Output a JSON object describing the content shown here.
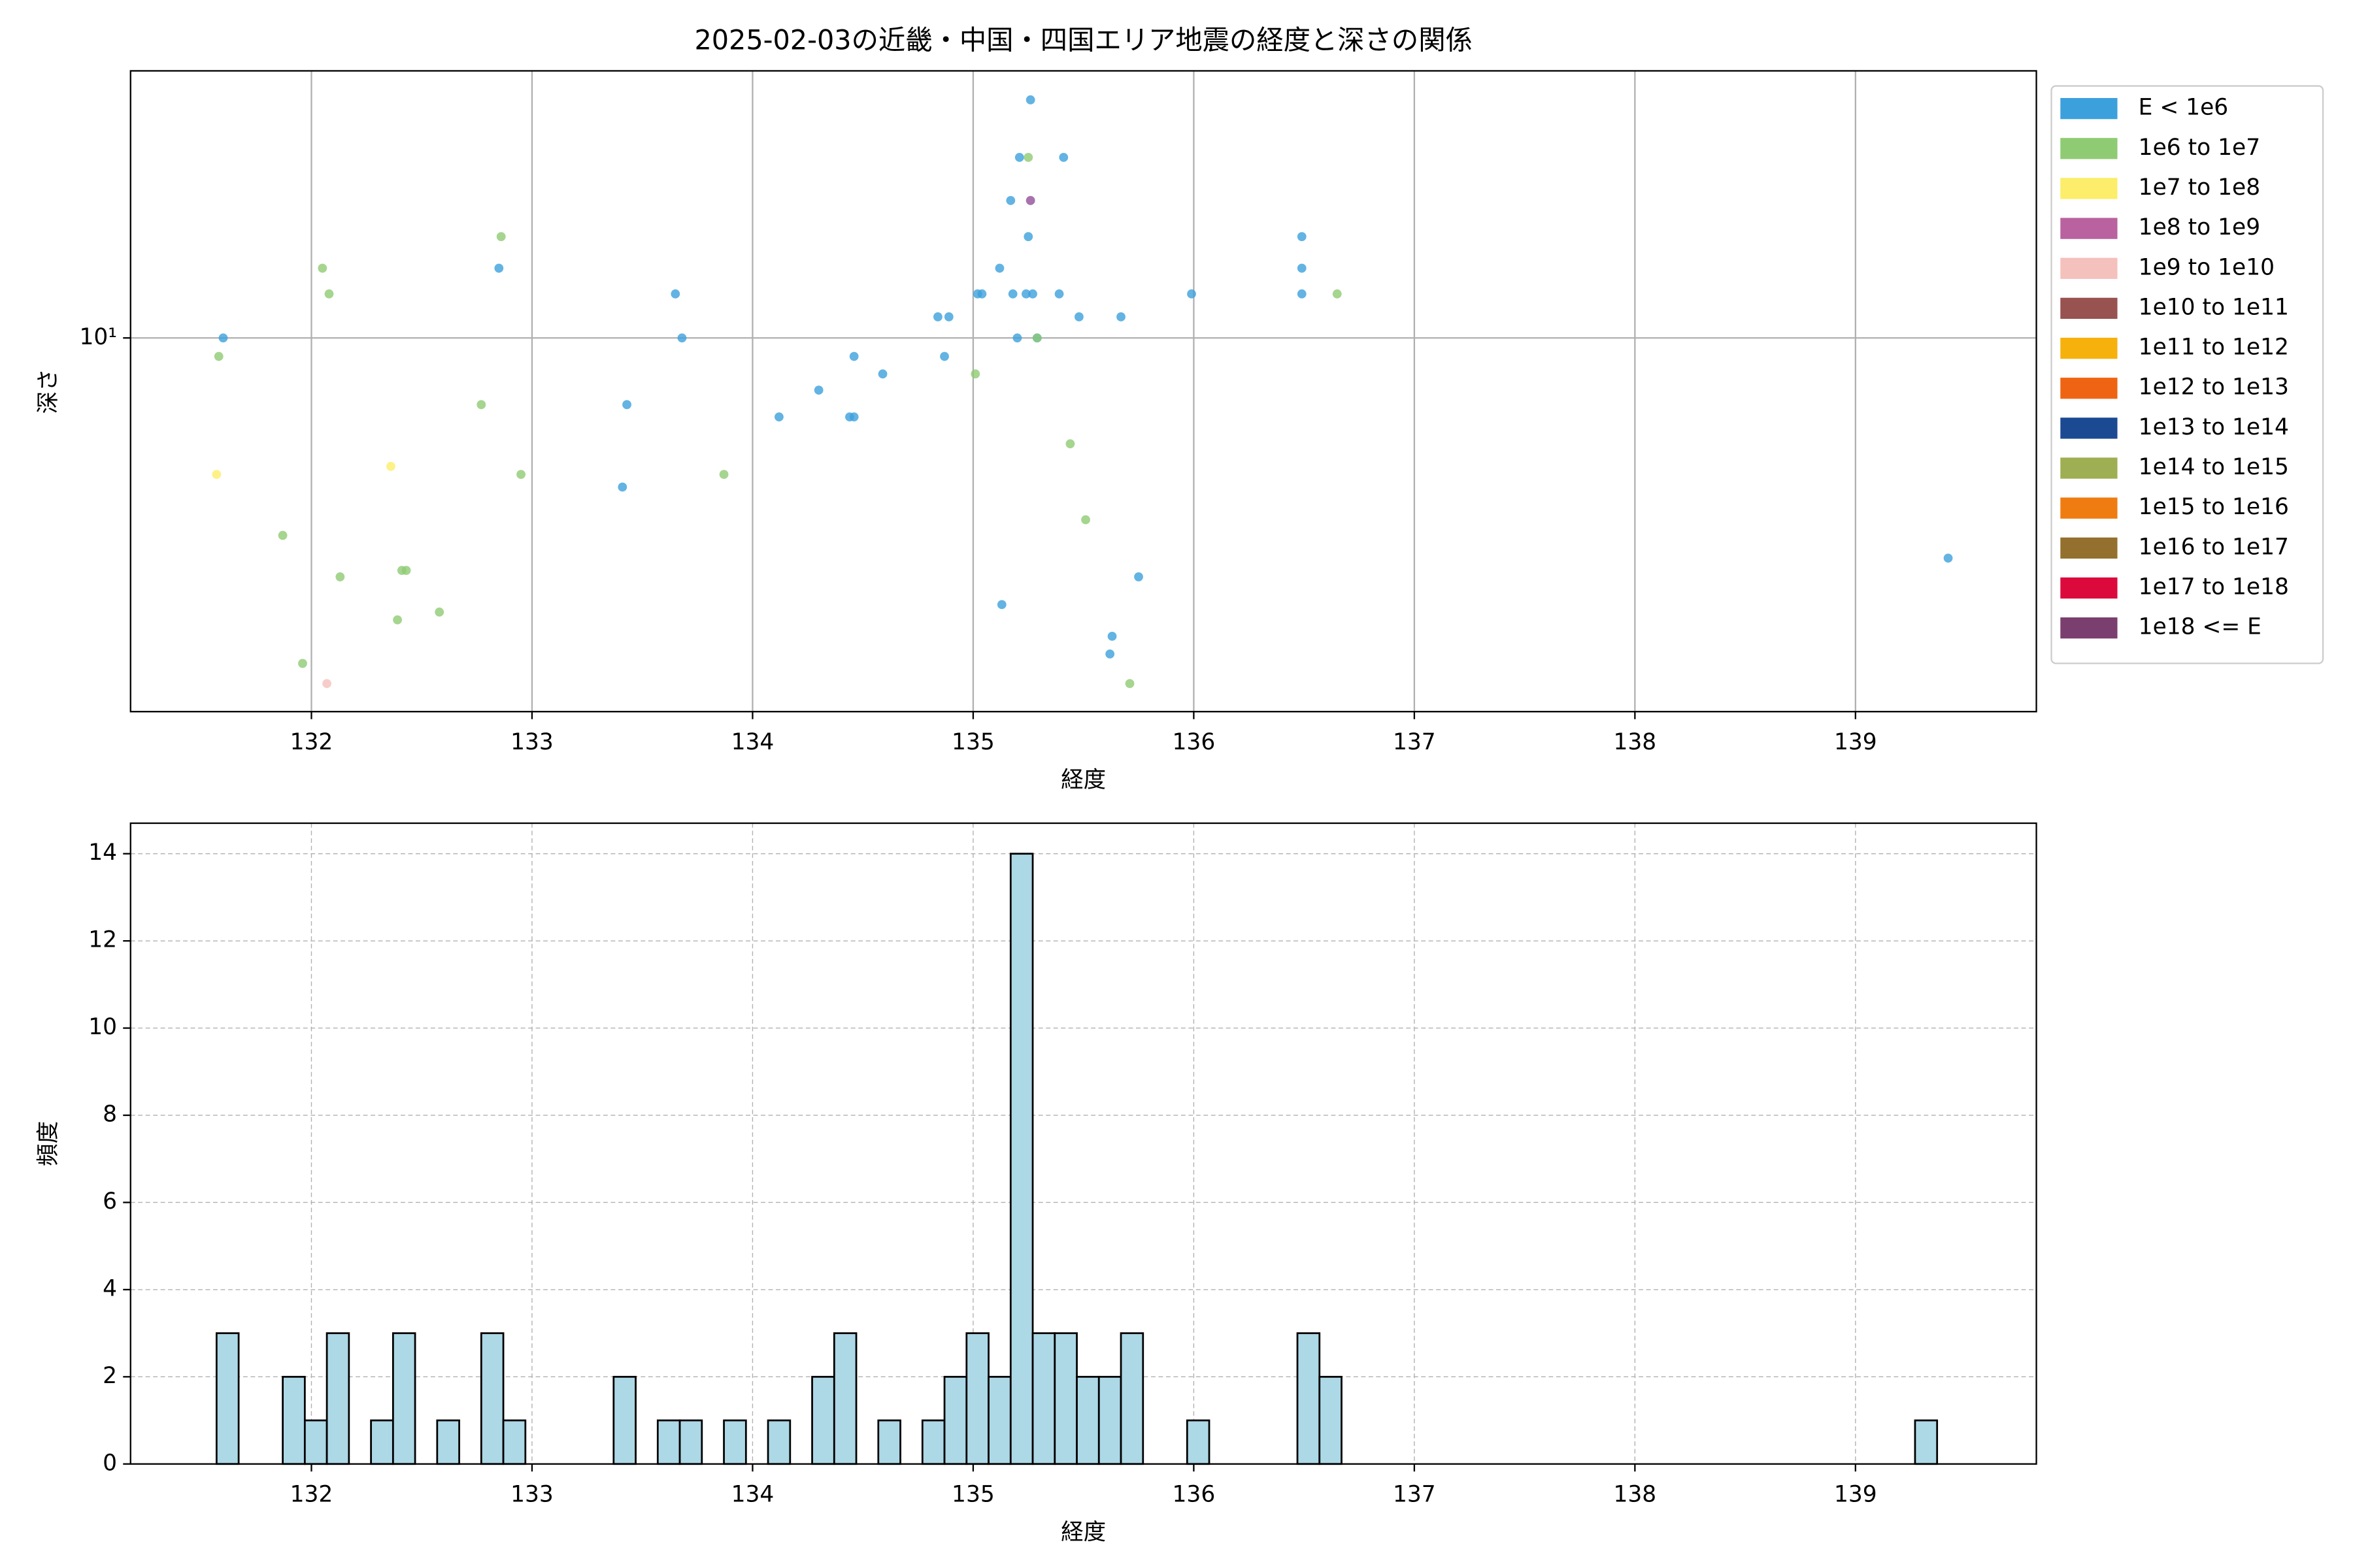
{
  "chart_data": [
    {
      "type": "scatter",
      "title": "2025-02-03の近畿・中国・四国エリア地震の経度と深さの関係",
      "x_label": "経度",
      "y_label": "深さ",
      "y_scale": "log",
      "grid": true,
      "grid_linestyle": "solid",
      "legend_position": "outside-right",
      "xlim": [
        131.18,
        139.82
      ],
      "xticks": [
        132,
        133,
        134,
        135,
        136,
        137,
        138,
        139
      ],
      "ylim": [
        1.85,
        33.4
      ],
      "yticks": [
        {
          "value": 10,
          "label": "10¹"
        }
      ],
      "series": [
        {
          "name": "E < 1e6",
          "color": "#3ca0dc",
          "x": [
            131.6,
            132.85,
            133.65,
            133.68,
            133.43,
            133.41,
            134.12,
            134.3,
            134.44,
            134.46,
            134.46,
            134.59,
            134.84,
            134.89,
            134.87,
            135.02,
            135.04,
            135.12,
            135.13,
            135.17,
            135.18,
            135.2,
            135.21,
            135.24,
            135.27,
            135.25,
            135.26,
            135.26,
            135.29,
            135.39,
            135.41,
            135.48,
            135.63,
            135.62,
            135.75,
            135.67,
            135.99,
            136.49,
            136.49,
            136.49,
            139.42
          ],
          "values": [
            10.0,
            13.7,
            12.2,
            10.0,
            7.4,
            5.1,
            7.0,
            7.9,
            7.0,
            7.0,
            9.2,
            8.5,
            11.0,
            11.0,
            9.2,
            12.2,
            12.2,
            13.7,
            3.0,
            18.6,
            12.2,
            10.0,
            22.6,
            12.2,
            12.2,
            15.8,
            29.3,
            18.6,
            10.0,
            12.2,
            22.6,
            11.0,
            2.6,
            2.4,
            3.4,
            11.0,
            12.2,
            15.8,
            13.7,
            12.2,
            3.7
          ]
        },
        {
          "name": "1e6 to 1e7",
          "color": "#8fcb73",
          "x": [
            131.58,
            131.87,
            131.96,
            132.05,
            132.08,
            132.13,
            132.39,
            132.41,
            132.43,
            132.58,
            132.77,
            132.86,
            132.95,
            133.87,
            135.01,
            135.25,
            135.29,
            135.44,
            135.51,
            135.71,
            136.65
          ],
          "values": [
            9.2,
            4.1,
            2.3,
            13.7,
            12.2,
            3.4,
            2.8,
            3.5,
            3.5,
            2.9,
            7.4,
            15.8,
            5.4,
            5.4,
            8.5,
            22.6,
            10.0,
            6.2,
            4.4,
            2.1,
            12.2
          ]
        },
        {
          "name": "1e7 to 1e8",
          "color": "#fced6a",
          "x": [
            131.57,
            132.36
          ],
          "values": [
            5.4,
            5.6
          ]
        },
        {
          "name": "1e8 to 1e9",
          "color": "#b9629f",
          "x": [
            135.26
          ],
          "values": [
            18.6
          ]
        },
        {
          "name": "1e9 to 1e10",
          "color": "#f5c1bc",
          "x": [
            132.07
          ],
          "values": [
            2.1
          ]
        },
        {
          "name": "1e10 to 1e11",
          "color": "#985250",
          "x": [],
          "values": []
        },
        {
          "name": "1e11 to 1e12",
          "color": "#f6b10c",
          "x": [],
          "values": []
        },
        {
          "name": "1e12 to 1e13",
          "color": "#ef6413",
          "x": [],
          "values": []
        },
        {
          "name": "1e13 to 1e14",
          "color": "#1b4a93",
          "x": [],
          "values": []
        },
        {
          "name": "1e14 to 1e15",
          "color": "#9eae52",
          "x": [],
          "values": []
        },
        {
          "name": "1e15 to 1e16",
          "color": "#ef7c10",
          "x": [],
          "values": []
        },
        {
          "name": "1e16 to 1e17",
          "color": "#94702e",
          "x": [],
          "values": []
        },
        {
          "name": "1e17 to 1e18",
          "color": "#dc0a3c",
          "x": [],
          "values": []
        },
        {
          "name": "1e18 <= E",
          "color": "#7a3f6e",
          "x": [],
          "values": []
        }
      ]
    },
    {
      "type": "histogram",
      "x_label": "経度",
      "y_label": "頻度",
      "grid": true,
      "grid_linestyle": "dashed",
      "color": "#add8e6",
      "edgecolor": "#000000",
      "xlim": [
        131.18,
        139.82
      ],
      "xticks": [
        132,
        133,
        134,
        135,
        136,
        137,
        138,
        139
      ],
      "ylim": [
        0,
        14.7
      ],
      "yticks": [
        0,
        2,
        4,
        6,
        8,
        10,
        12,
        14
      ],
      "bins": [
        131.57,
        131.67,
        131.77,
        131.87,
        131.97,
        132.07,
        132.17,
        132.27,
        132.37,
        132.47,
        132.57,
        132.67,
        132.77,
        132.87,
        132.97,
        133.07,
        133.17,
        133.27,
        133.37,
        133.47,
        133.57,
        133.67,
        133.77,
        133.87,
        133.97,
        134.07,
        134.17,
        134.27,
        134.37,
        134.47,
        134.57,
        134.67,
        134.77,
        134.87,
        134.97,
        135.07,
        135.17,
        135.27,
        135.37,
        135.47,
        135.57,
        135.67,
        135.77,
        135.87,
        135.97,
        136.07,
        136.17,
        136.27,
        136.37,
        136.47,
        136.57,
        136.67,
        136.77,
        136.87,
        136.97,
        137.07,
        137.17,
        137.27,
        137.37,
        137.47,
        137.57,
        137.67,
        137.77,
        137.87,
        137.97,
        138.07,
        138.17,
        138.27,
        138.37,
        138.47,
        138.57,
        138.67,
        138.77,
        138.87,
        138.97,
        139.07,
        139.17,
        139.27,
        139.37,
        139.47
      ],
      "values": [
        3,
        0,
        0,
        2,
        1,
        3,
        0,
        1,
        3,
        0,
        1,
        0,
        3,
        1,
        0,
        0,
        0,
        0,
        2,
        0,
        1,
        1,
        0,
        1,
        0,
        1,
        0,
        2,
        3,
        0,
        1,
        0,
        1,
        2,
        3,
        2,
        14,
        3,
        3,
        2,
        2,
        3,
        0,
        0,
        1,
        0,
        0,
        0,
        0,
        3,
        2,
        0,
        0,
        0,
        0,
        0,
        0,
        0,
        0,
        0,
        0,
        0,
        0,
        0,
        0,
        0,
        0,
        0,
        0,
        0,
        0,
        0,
        0,
        0,
        0,
        0,
        0,
        1,
        0
      ]
    }
  ]
}
